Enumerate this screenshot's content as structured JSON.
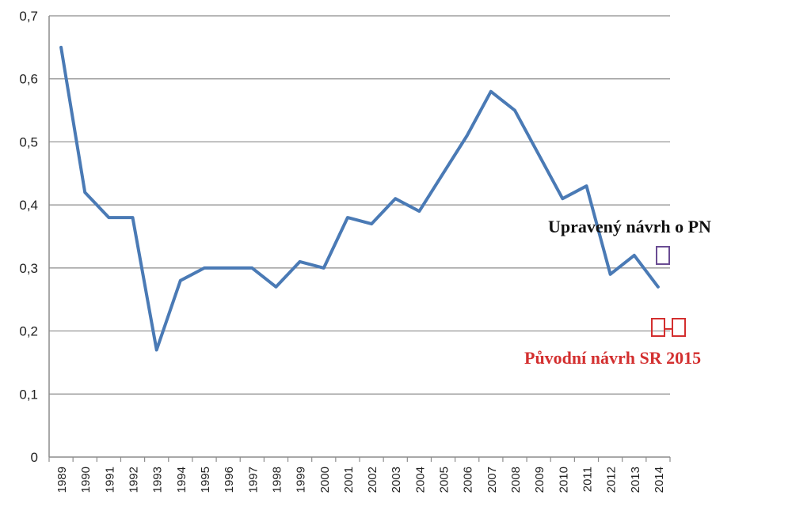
{
  "chart_data": {
    "type": "line",
    "title": "",
    "xlabel": "",
    "ylabel": "",
    "categories": [
      "1989",
      "1990",
      "1991",
      "1992",
      "1993",
      "1994",
      "1995",
      "1996",
      "1997",
      "1998",
      "1999",
      "2000",
      "2001",
      "2002",
      "2003",
      "2004",
      "2005",
      "2006",
      "2007",
      "2008",
      "2009",
      "2010",
      "2011",
      "2012",
      "2013",
      "2014"
    ],
    "values": [
      0.65,
      0.42,
      0.38,
      0.38,
      0.17,
      0.28,
      0.3,
      0.3,
      0.3,
      0.27,
      0.31,
      0.3,
      0.38,
      0.37,
      0.41,
      0.39,
      0.45,
      0.51,
      0.58,
      0.55,
      0.48,
      0.41,
      0.43,
      0.29,
      0.32,
      0.27
    ],
    "ylim": [
      0,
      0.7
    ],
    "yticks": [
      0,
      0.1,
      0.2,
      0.3,
      0.4,
      0.5,
      0.6,
      0.7
    ],
    "ytick_labels": [
      "0",
      "0,1",
      "0,2",
      "0,3",
      "0,4",
      "0,5",
      "0,6",
      "0,7"
    ],
    "grid": true,
    "line_color": "#4a7ab5",
    "annotations": [
      {
        "text": "Upravený návrh o PN",
        "color": "#111111"
      },
      {
        "text": "Původní návrh SR 2015",
        "color": "#d32f2f"
      }
    ]
  }
}
